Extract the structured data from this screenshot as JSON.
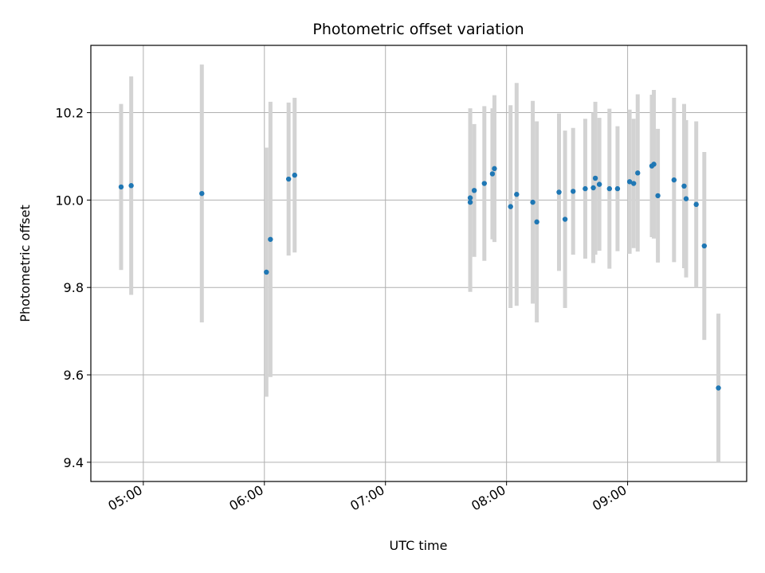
{
  "chart_data": {
    "type": "scatter",
    "title": "Photometric offset variation",
    "xlabel": "UTC time",
    "ylabel": "Photometric offset",
    "x_unit": "UTC time of day (HH:MM)",
    "xlim": [
      "04:34",
      "09:59"
    ],
    "ylim": [
      9.356,
      10.354
    ],
    "x_ticks": [
      "05:00",
      "06:00",
      "07:00",
      "08:00",
      "09:00"
    ],
    "y_ticks": [
      9.4,
      9.6,
      9.8,
      10.0,
      10.2
    ],
    "y_tick_labels": [
      "9.4",
      "9.6",
      "9.8",
      "10.0",
      "10.2"
    ],
    "grid": true,
    "legend": "none",
    "colors": {
      "point": "#1f77b4",
      "errorbar": "#d3d3d3",
      "grid": "#b0b0b0"
    },
    "series": [
      {
        "points": [
          {
            "x": "04:49",
            "y": 10.03,
            "err": 0.19
          },
          {
            "x": "04:54",
            "y": 10.033,
            "err": 0.25
          },
          {
            "x": "05:29",
            "y": 10.015,
            "err": 0.295
          },
          {
            "x": "06:01",
            "y": 9.835,
            "err": 0.285
          },
          {
            "x": "06:03",
            "y": 9.91,
            "err": 0.315
          },
          {
            "x": "06:12",
            "y": 10.048,
            "err": 0.175
          },
          {
            "x": "06:15",
            "y": 10.057,
            "err": 0.177
          },
          {
            "x": "07:42",
            "y": 9.995,
            "err": 0.205
          },
          {
            "x": "07:42",
            "y": 10.005,
            "err": 0.205
          },
          {
            "x": "07:44",
            "y": 10.022,
            "err": 0.152
          },
          {
            "x": "07:49",
            "y": 10.038,
            "err": 0.177
          },
          {
            "x": "07:53",
            "y": 10.06,
            "err": 0.15
          },
          {
            "x": "07:54",
            "y": 10.072,
            "err": 0.168
          },
          {
            "x": "08:02",
            "y": 9.985,
            "err": 0.232
          },
          {
            "x": "08:05",
            "y": 10.013,
            "err": 0.255
          },
          {
            "x": "08:13",
            "y": 9.995,
            "err": 0.232
          },
          {
            "x": "08:15",
            "y": 9.95,
            "err": 0.23
          },
          {
            "x": "08:26",
            "y": 10.018,
            "err": 0.18
          },
          {
            "x": "08:29",
            "y": 9.956,
            "err": 0.203
          },
          {
            "x": "08:33",
            "y": 10.02,
            "err": 0.145
          },
          {
            "x": "08:39",
            "y": 10.026,
            "err": 0.16
          },
          {
            "x": "08:43",
            "y": 10.028,
            "err": 0.172
          },
          {
            "x": "08:44",
            "y": 10.05,
            "err": 0.175
          },
          {
            "x": "08:46",
            "y": 10.036,
            "err": 0.152
          },
          {
            "x": "08:51",
            "y": 10.026,
            "err": 0.183
          },
          {
            "x": "08:55",
            "y": 10.026,
            "err": 0.143
          },
          {
            "x": "09:01",
            "y": 10.042,
            "err": 0.165
          },
          {
            "x": "09:03",
            "y": 10.038,
            "err": 0.148
          },
          {
            "x": "09:05",
            "y": 10.062,
            "err": 0.18
          },
          {
            "x": "09:12",
            "y": 10.078,
            "err": 0.163
          },
          {
            "x": "09:13",
            "y": 10.082,
            "err": 0.17
          },
          {
            "x": "09:15",
            "y": 10.01,
            "err": 0.153
          },
          {
            "x": "09:23",
            "y": 10.046,
            "err": 0.188
          },
          {
            "x": "09:28",
            "y": 10.032,
            "err": 0.188
          },
          {
            "x": "09:29",
            "y": 10.003,
            "err": 0.18
          },
          {
            "x": "09:34",
            "y": 9.99,
            "err": 0.19
          },
          {
            "x": "09:38",
            "y": 9.895,
            "err": 0.215
          },
          {
            "x": "09:45",
            "y": 9.57,
            "err": 0.17
          }
        ]
      }
    ]
  }
}
